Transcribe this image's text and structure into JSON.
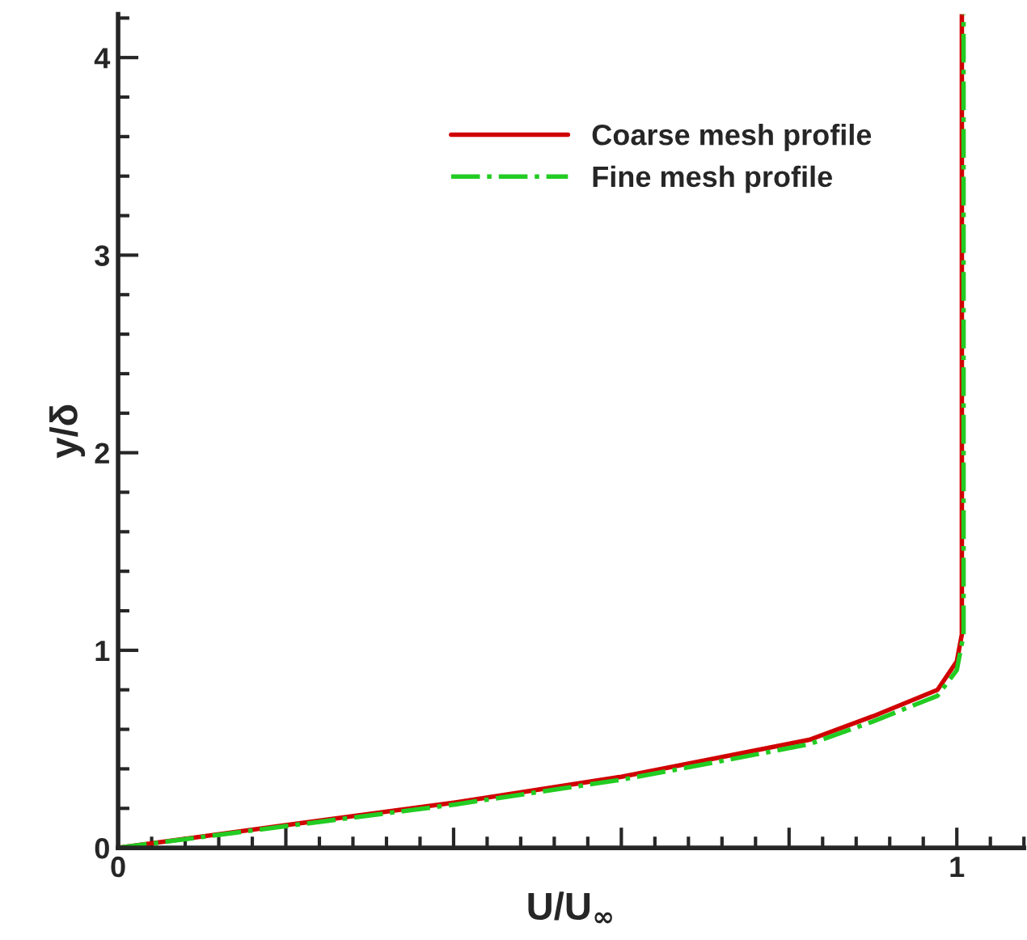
{
  "chart_data": {
    "type": "line",
    "xlabel": "U/U$_{∞}$",
    "ylabel": "y/δ",
    "xlim": [
      0,
      1.08
    ],
    "ylim": [
      0,
      4.22
    ],
    "xticks": [
      0,
      {
        "value": 0.2,
        "label": null
      },
      {
        "value": 0.4,
        "label": null
      },
      {
        "value": 0.6,
        "label": null
      },
      {
        "value": 0.8,
        "label": null
      },
      1
    ],
    "yticks": [
      0,
      1,
      2,
      3,
      4
    ],
    "legend": "top",
    "grid": false,
    "series": [
      {
        "name": "Coarse mesh profile",
        "color": "#d00000",
        "line_style": "solid",
        "x": [
          0,
          0.2,
          0.402,
          0.6,
          0.708,
          0.824,
          0.9,
          0.977,
          1.0,
          1.006,
          1.006
        ],
        "values": [
          0,
          0.115,
          0.23,
          0.36,
          0.45,
          0.547,
          0.666,
          0.8,
          0.944,
          1.08,
          4.22
        ]
      },
      {
        "name": "Fine mesh profile",
        "color": "#22cc22",
        "line_style": "dashdot",
        "x": [
          0,
          0.2,
          0.402,
          0.6,
          0.708,
          0.824,
          0.9,
          0.977,
          1.0,
          1.008,
          1.008
        ],
        "values": [
          0,
          0.11,
          0.22,
          0.345,
          0.43,
          0.525,
          0.64,
          0.77,
          0.9,
          1.08,
          4.22
        ]
      }
    ]
  }
}
